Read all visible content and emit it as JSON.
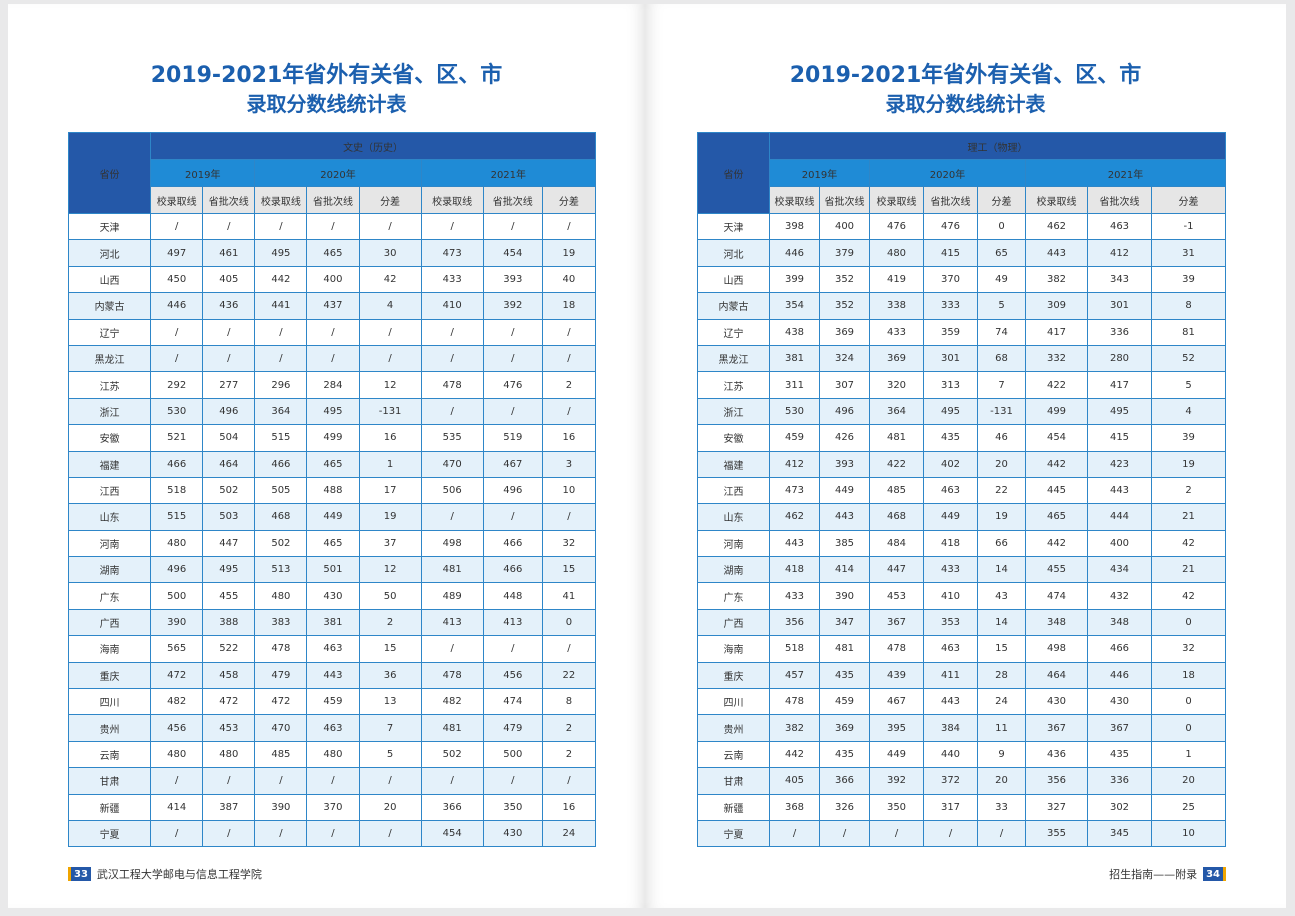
{
  "left": {
    "title_line1": "2019-2021年省外有关省、区、市",
    "title_line2": "录取分数线统计表",
    "header": {
      "province": "省份",
      "category": "文史（历史）",
      "years": [
        "2019年",
        "2020年",
        "2021年"
      ],
      "sub": [
        "校录取线",
        "省批次线",
        "校录取线",
        "省批次线",
        "分差",
        "校录取线",
        "省批次线",
        "分差"
      ]
    },
    "rows": [
      [
        "天津",
        "/",
        "/",
        "/",
        "/",
        "/",
        "/",
        "/",
        "/"
      ],
      [
        "河北",
        "497",
        "461",
        "495",
        "465",
        "30",
        "473",
        "454",
        "19"
      ],
      [
        "山西",
        "450",
        "405",
        "442",
        "400",
        "42",
        "433",
        "393",
        "40"
      ],
      [
        "内蒙古",
        "446",
        "436",
        "441",
        "437",
        "4",
        "410",
        "392",
        "18"
      ],
      [
        "辽宁",
        "/",
        "/",
        "/",
        "/",
        "/",
        "/",
        "/",
        "/"
      ],
      [
        "黑龙江",
        "/",
        "/",
        "/",
        "/",
        "/",
        "/",
        "/",
        "/"
      ],
      [
        "江苏",
        "292",
        "277",
        "296",
        "284",
        "12",
        "478",
        "476",
        "2"
      ],
      [
        "浙江",
        "530",
        "496",
        "364",
        "495",
        "-131",
        "/",
        "/",
        "/"
      ],
      [
        "安徽",
        "521",
        "504",
        "515",
        "499",
        "16",
        "535",
        "519",
        "16"
      ],
      [
        "福建",
        "466",
        "464",
        "466",
        "465",
        "1",
        "470",
        "467",
        "3"
      ],
      [
        "江西",
        "518",
        "502",
        "505",
        "488",
        "17",
        "506",
        "496",
        "10"
      ],
      [
        "山东",
        "515",
        "503",
        "468",
        "449",
        "19",
        "/",
        "/",
        "/"
      ],
      [
        "河南",
        "480",
        "447",
        "502",
        "465",
        "37",
        "498",
        "466",
        "32"
      ],
      [
        "湖南",
        "496",
        "495",
        "513",
        "501",
        "12",
        "481",
        "466",
        "15"
      ],
      [
        "广东",
        "500",
        "455",
        "480",
        "430",
        "50",
        "489",
        "448",
        "41"
      ],
      [
        "广西",
        "390",
        "388",
        "383",
        "381",
        "2",
        "413",
        "413",
        "0"
      ],
      [
        "海南",
        "565",
        "522",
        "478",
        "463",
        "15",
        "/",
        "/",
        "/"
      ],
      [
        "重庆",
        "472",
        "458",
        "479",
        "443",
        "36",
        "478",
        "456",
        "22"
      ],
      [
        "四川",
        "482",
        "472",
        "472",
        "459",
        "13",
        "482",
        "474",
        "8"
      ],
      [
        "贵州",
        "456",
        "453",
        "470",
        "463",
        "7",
        "481",
        "479",
        "2"
      ],
      [
        "云南",
        "480",
        "480",
        "485",
        "480",
        "5",
        "502",
        "500",
        "2"
      ],
      [
        "甘肃",
        "/",
        "/",
        "/",
        "/",
        "/",
        "/",
        "/",
        "/"
      ],
      [
        "新疆",
        "414",
        "387",
        "390",
        "370",
        "20",
        "366",
        "350",
        "16"
      ],
      [
        "宁夏",
        "/",
        "/",
        "/",
        "/",
        "/",
        "454",
        "430",
        "24"
      ]
    ],
    "footer_page": "33",
    "footer_text": "武汉工程大学邮电与信息工程学院"
  },
  "right": {
    "title_line1": "2019-2021年省外有关省、区、市",
    "title_line2": "录取分数线统计表",
    "header": {
      "province": "省份",
      "category": "理工（物理）",
      "years": [
        "2019年",
        "2020年",
        "2021年"
      ],
      "sub": [
        "校录取线",
        "省批次线",
        "校录取线",
        "省批次线",
        "分差",
        "校录取线",
        "省批次线",
        "分差"
      ]
    },
    "rows": [
      [
        "天津",
        "398",
        "400",
        "476",
        "476",
        "0",
        "462",
        "463",
        "-1"
      ],
      [
        "河北",
        "446",
        "379",
        "480",
        "415",
        "65",
        "443",
        "412",
        "31"
      ],
      [
        "山西",
        "399",
        "352",
        "419",
        "370",
        "49",
        "382",
        "343",
        "39"
      ],
      [
        "内蒙古",
        "354",
        "352",
        "338",
        "333",
        "5",
        "309",
        "301",
        "8"
      ],
      [
        "辽宁",
        "438",
        "369",
        "433",
        "359",
        "74",
        "417",
        "336",
        "81"
      ],
      [
        "黑龙江",
        "381",
        "324",
        "369",
        "301",
        "68",
        "332",
        "280",
        "52"
      ],
      [
        "江苏",
        "311",
        "307",
        "320",
        "313",
        "7",
        "422",
        "417",
        "5"
      ],
      [
        "浙江",
        "530",
        "496",
        "364",
        "495",
        "-131",
        "499",
        "495",
        "4"
      ],
      [
        "安徽",
        "459",
        "426",
        "481",
        "435",
        "46",
        "454",
        "415",
        "39"
      ],
      [
        "福建",
        "412",
        "393",
        "422",
        "402",
        "20",
        "442",
        "423",
        "19"
      ],
      [
        "江西",
        "473",
        "449",
        "485",
        "463",
        "22",
        "445",
        "443",
        "2"
      ],
      [
        "山东",
        "462",
        "443",
        "468",
        "449",
        "19",
        "465",
        "444",
        "21"
      ],
      [
        "河南",
        "443",
        "385",
        "484",
        "418",
        "66",
        "442",
        "400",
        "42"
      ],
      [
        "湖南",
        "418",
        "414",
        "447",
        "433",
        "14",
        "455",
        "434",
        "21"
      ],
      [
        "广东",
        "433",
        "390",
        "453",
        "410",
        "43",
        "474",
        "432",
        "42"
      ],
      [
        "广西",
        "356",
        "347",
        "367",
        "353",
        "14",
        "348",
        "348",
        "0"
      ],
      [
        "海南",
        "518",
        "481",
        "478",
        "463",
        "15",
        "498",
        "466",
        "32"
      ],
      [
        "重庆",
        "457",
        "435",
        "439",
        "411",
        "28",
        "464",
        "446",
        "18"
      ],
      [
        "四川",
        "478",
        "459",
        "467",
        "443",
        "24",
        "430",
        "430",
        "0"
      ],
      [
        "贵州",
        "382",
        "369",
        "395",
        "384",
        "11",
        "367",
        "367",
        "0"
      ],
      [
        "云南",
        "442",
        "435",
        "449",
        "440",
        "9",
        "436",
        "435",
        "1"
      ],
      [
        "甘肃",
        "405",
        "366",
        "392",
        "372",
        "20",
        "356",
        "336",
        "20"
      ],
      [
        "新疆",
        "368",
        "326",
        "350",
        "317",
        "33",
        "327",
        "302",
        "25"
      ],
      [
        "宁夏",
        "/",
        "/",
        "/",
        "/",
        "/",
        "355",
        "345",
        "10"
      ]
    ],
    "footer_page": "34",
    "footer_text": "招生指南——附录"
  }
}
